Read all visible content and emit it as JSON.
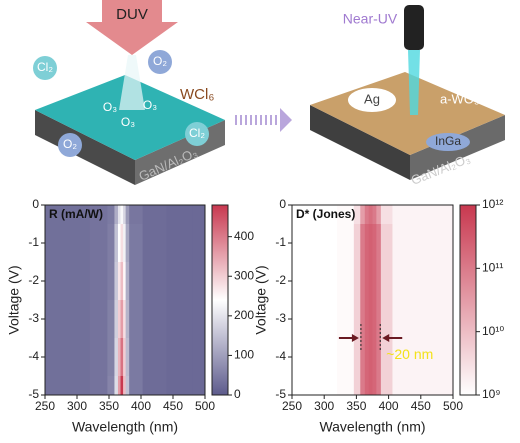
{
  "illustration": {
    "left": {
      "source": "DUV",
      "gases": [
        "Cl₂",
        "O₂",
        "O₃",
        "O₃",
        "O₃",
        "O₂",
        "Cl₂"
      ],
      "precursor": "WCl₆",
      "substrate": "GaN/Al₂O₃"
    },
    "right": {
      "source": "Near-UV",
      "electrode": "Ag",
      "film": "a-WO₃",
      "contact": "InGa",
      "substrate": "GaN/Al₂O₃"
    }
  },
  "chart_data": [
    {
      "type": "heatmap",
      "label": "R (mA/W)",
      "xlabel": "Wavelength (nm)",
      "ylabel": "Voltage (V)",
      "x": [
        250,
        300,
        340,
        355,
        362,
        366,
        370,
        374,
        378,
        385,
        420,
        460,
        500
      ],
      "y": [
        0,
        -1,
        -2,
        -3,
        -4,
        -5
      ],
      "z": [
        [
          30,
          30,
          35,
          45,
          120,
          200,
          230,
          180,
          90,
          40,
          25,
          20,
          20
        ],
        [
          30,
          30,
          35,
          50,
          150,
          240,
          280,
          220,
          110,
          45,
          25,
          20,
          20
        ],
        [
          30,
          30,
          35,
          50,
          160,
          270,
          320,
          250,
          120,
          45,
          25,
          20,
          20
        ],
        [
          30,
          30,
          35,
          55,
          170,
          300,
          360,
          280,
          130,
          45,
          25,
          20,
          20
        ],
        [
          30,
          30,
          35,
          55,
          180,
          330,
          410,
          300,
          140,
          45,
          25,
          20,
          20
        ],
        [
          30,
          30,
          35,
          60,
          190,
          360,
          480,
          320,
          150,
          45,
          25,
          20,
          20
        ]
      ],
      "xlim": [
        250,
        500
      ],
      "xticks": [
        250,
        300,
        350,
        400,
        450,
        500
      ],
      "ylim": [
        -5,
        0
      ],
      "yticks": [
        0,
        -1,
        -2,
        -3,
        -4,
        -5
      ],
      "clim": [
        0,
        480
      ],
      "cticks": [
        0,
        100,
        200,
        300,
        400
      ],
      "colors": [
        "#5d5b8c",
        "#ffffff",
        "#c8384f"
      ],
      "log_color": false
    },
    {
      "type": "heatmap",
      "label": "D* (Jones)",
      "xlabel": "Wavelength (nm)",
      "ylabel": "Voltage (V)",
      "x": [
        250,
        300,
        340,
        352,
        360,
        366,
        372,
        378,
        384,
        392,
        420,
        460,
        500
      ],
      "y": [
        0,
        -1,
        -2,
        -3,
        -4,
        -5
      ],
      "z": [
        [
          1000000000,
          1000000000,
          1200000000,
          3000000000,
          30000000000,
          100000000000,
          150000000000,
          100000000000,
          30000000000,
          3000000000,
          1500000000,
          1500000000,
          1500000000
        ],
        [
          1000000000,
          1000000000,
          1200000000,
          5000000000,
          100000000000,
          200000000000,
          250000000000,
          200000000000,
          100000000000,
          5000000000,
          1500000000,
          1500000000,
          1500000000
        ],
        [
          1000000000,
          1000000000,
          1200000000,
          5000000000,
          100000000000,
          200000000000,
          250000000000,
          200000000000,
          100000000000,
          5000000000,
          1500000000,
          1500000000,
          1500000000
        ],
        [
          1000000000,
          1000000000,
          1200000000,
          5000000000,
          100000000000,
          200000000000,
          250000000000,
          200000000000,
          100000000000,
          5000000000,
          1500000000,
          1500000000,
          1500000000
        ],
        [
          1000000000,
          1000000000,
          1200000000,
          5000000000,
          100000000000,
          200000000000,
          250000000000,
          200000000000,
          100000000000,
          5000000000,
          1500000000,
          1500000000,
          1500000000
        ],
        [
          1000000000,
          1000000000,
          1200000000,
          5000000000,
          100000000000,
          200000000000,
          250000000000,
          200000000000,
          100000000000,
          5000000000,
          1500000000,
          1500000000,
          1500000000
        ]
      ],
      "xlim": [
        250,
        500
      ],
      "xticks": [
        250,
        300,
        350,
        400,
        450,
        500
      ],
      "ylim": [
        -5,
        0
      ],
      "yticks": [
        0,
        -1,
        -2,
        -3,
        -4,
        -5
      ],
      "clim": [
        1000000000,
        1000000000000
      ],
      "cticks": [
        {
          "value": 1000000000,
          "label": "10⁹"
        },
        {
          "value": 10000000000,
          "label": "10¹⁰"
        },
        {
          "value": 100000000000,
          "label": "10¹¹"
        },
        {
          "value": 1000000000000,
          "label": "10¹²"
        }
      ],
      "colors": [
        "#ffffff",
        "#c8384f"
      ],
      "log_color": true,
      "annotation": "~20 nm"
    }
  ]
}
